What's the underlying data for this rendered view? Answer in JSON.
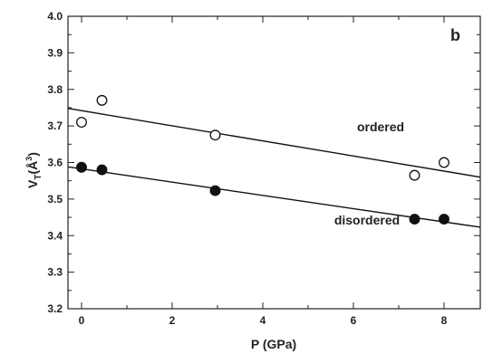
{
  "chart_data": {
    "type": "scatter",
    "panel_label": "b",
    "xlabel": "P (GPa)",
    "ylabel": {
      "main": "V",
      "sub": "T",
      "unit_open": "(Å",
      "unit_sup": "3",
      "unit_close": ")"
    },
    "xlim": [
      -0.3,
      8.8
    ],
    "ylim": [
      3.2,
      4.0
    ],
    "xticks": [
      0,
      2,
      4,
      6,
      8
    ],
    "yticks": [
      "3.2",
      "3.3",
      "3.4",
      "3.5",
      "3.6",
      "3.7",
      "3.8",
      "3.9",
      "4.0"
    ],
    "grid": false,
    "series": [
      {
        "marker": "open-circle",
        "x": [
          0.0,
          0.45,
          2.95,
          7.35,
          8.0
        ],
        "y": [
          3.71,
          3.77,
          3.675,
          3.565,
          3.6
        ],
        "fit": [
          [
            -0.3,
            3.748
          ],
          [
            8.8,
            3.56
          ]
        ]
      },
      {
        "marker": "filled-circle",
        "x": [
          0.0,
          0.45,
          2.95,
          7.35,
          8.0
        ],
        "y": [
          3.587,
          3.58,
          3.523,
          3.445,
          3.445
        ],
        "fit": [
          [
            -0.3,
            3.588
          ],
          [
            8.8,
            3.423
          ]
        ]
      }
    ],
    "annotations": [
      {
        "text": "ordered",
        "x": 6.6,
        "y": 3.685
      },
      {
        "text": "disordered",
        "x": 6.3,
        "y": 3.43
      }
    ]
  }
}
